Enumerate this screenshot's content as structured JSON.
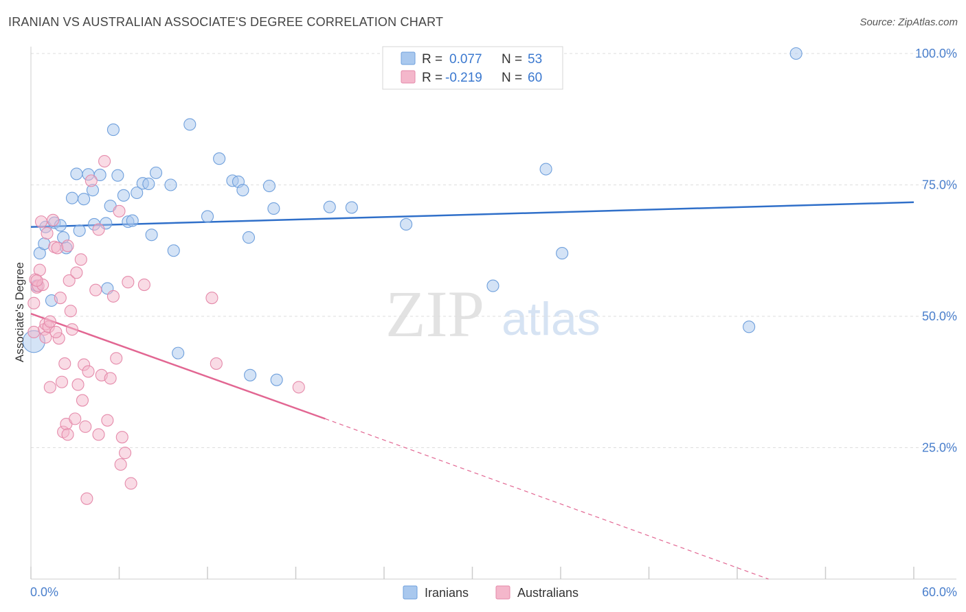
{
  "header": {
    "title": "IRANIAN VS AUSTRALIAN ASSOCIATE'S DEGREE CORRELATION CHART",
    "source": "Source: ZipAtlas.com"
  },
  "watermark": {
    "zip": "ZIP",
    "atlas": "atlas"
  },
  "colors": {
    "blue_fill": "#a9c8ee",
    "blue_stroke": "#6e9fdc",
    "blue_line": "#2f6fc9",
    "pink_fill": "#f4b7cb",
    "pink_stroke": "#e58aaa",
    "pink_line": "#e26692",
    "axis_text": "#4a7fcc",
    "grid": "#dddddd"
  },
  "legend": {
    "r_label": "R =",
    "n_label": "N =",
    "rows": [
      {
        "r": "0.077",
        "n": "53"
      },
      {
        "r": "-0.219",
        "n": "60"
      }
    ]
  },
  "chart_data": {
    "type": "scatter",
    "title": "IRANIAN VS AUSTRALIAN ASSOCIATE'S DEGREE CORRELATION CHART",
    "xlabel": "",
    "ylabel": "Associate's Degree",
    "xlim": [
      0,
      60
    ],
    "ylim": [
      0,
      104
    ],
    "x_tick_labels": [
      "0.0%",
      "60.0%"
    ],
    "y_ticks": [
      25,
      50,
      75,
      100
    ],
    "y_tick_labels": [
      "25.0%",
      "50.0%",
      "75.0%",
      "100.0%"
    ],
    "series": [
      {
        "name": "Iranians",
        "r": 0.077,
        "n": 53,
        "trend": {
          "x": [
            0,
            60
          ],
          "y": [
            67.0,
            71.7
          ],
          "dashed_after": null
        },
        "points": [
          [
            0.2,
            45.2
          ],
          [
            0.4,
            55.8
          ],
          [
            0.6,
            62.0
          ],
          [
            0.9,
            63.8
          ],
          [
            1.0,
            67.0
          ],
          [
            1.4,
            53.0
          ],
          [
            1.6,
            67.8
          ],
          [
            2.0,
            67.3
          ],
          [
            2.2,
            65.0
          ],
          [
            2.4,
            63.0
          ],
          [
            2.8,
            72.5
          ],
          [
            3.1,
            77.1
          ],
          [
            3.3,
            66.3
          ],
          [
            3.6,
            72.3
          ],
          [
            3.9,
            77.0
          ],
          [
            4.2,
            74.0
          ],
          [
            4.3,
            67.5
          ],
          [
            4.7,
            76.9
          ],
          [
            5.1,
            67.7
          ],
          [
            5.2,
            55.3
          ],
          [
            5.4,
            71.0
          ],
          [
            5.6,
            85.5
          ],
          [
            5.9,
            76.8
          ],
          [
            6.3,
            73.0
          ],
          [
            6.6,
            68.0
          ],
          [
            6.9,
            68.2
          ],
          [
            7.2,
            73.5
          ],
          [
            7.6,
            75.3
          ],
          [
            8.0,
            75.2
          ],
          [
            8.2,
            65.5
          ],
          [
            8.5,
            77.3
          ],
          [
            9.7,
            62.5
          ],
          [
            9.5,
            75.0
          ],
          [
            10.0,
            43.0
          ],
          [
            10.8,
            86.5
          ],
          [
            12.0,
            69.0
          ],
          [
            12.8,
            80.0
          ],
          [
            13.7,
            75.8
          ],
          [
            14.1,
            75.6
          ],
          [
            14.4,
            74.0
          ],
          [
            14.8,
            65.0
          ],
          [
            14.9,
            38.8
          ],
          [
            16.2,
            74.8
          ],
          [
            16.5,
            70.5
          ],
          [
            16.7,
            37.9
          ],
          [
            20.3,
            70.8
          ],
          [
            21.8,
            70.7
          ],
          [
            25.5,
            67.5
          ],
          [
            31.4,
            55.8
          ],
          [
            35.0,
            78.0
          ],
          [
            36.1,
            62.0
          ],
          [
            52.0,
            100.0
          ],
          [
            48.8,
            48.0
          ]
        ]
      },
      {
        "name": "Australians",
        "r": -0.219,
        "n": 60,
        "trend": {
          "x": [
            0,
            20,
            60
          ],
          "y": [
            50.5,
            30.5,
            -10.0
          ],
          "dashed_after": 20
        },
        "points": [
          [
            0.2,
            47.0
          ],
          [
            0.2,
            52.5
          ],
          [
            0.3,
            57.0
          ],
          [
            0.4,
            55.5
          ],
          [
            0.5,
            55.8
          ],
          [
            0.6,
            58.8
          ],
          [
            0.7,
            68.0
          ],
          [
            0.8,
            56.0
          ],
          [
            0.9,
            47.5
          ],
          [
            1.0,
            48.5
          ],
          [
            1.0,
            46.0
          ],
          [
            1.2,
            48.0
          ],
          [
            1.3,
            49.0
          ],
          [
            1.3,
            36.5
          ],
          [
            1.5,
            68.3
          ],
          [
            1.6,
            63.2
          ],
          [
            1.8,
            63.0
          ],
          [
            1.9,
            45.8
          ],
          [
            2.0,
            53.5
          ],
          [
            2.1,
            37.5
          ],
          [
            2.2,
            28.0
          ],
          [
            2.3,
            41.0
          ],
          [
            2.4,
            29.5
          ],
          [
            2.5,
            27.5
          ],
          [
            2.6,
            56.8
          ],
          [
            2.7,
            51.0
          ],
          [
            2.8,
            47.5
          ],
          [
            3.0,
            30.5
          ],
          [
            3.1,
            58.3
          ],
          [
            3.2,
            37.0
          ],
          [
            3.4,
            60.8
          ],
          [
            3.5,
            34.0
          ],
          [
            3.6,
            40.8
          ],
          [
            3.7,
            29.0
          ],
          [
            3.9,
            39.5
          ],
          [
            3.8,
            15.3
          ],
          [
            4.1,
            75.8
          ],
          [
            4.4,
            55.0
          ],
          [
            4.6,
            66.5
          ],
          [
            4.6,
            27.5
          ],
          [
            4.8,
            38.8
          ],
          [
            5.0,
            79.5
          ],
          [
            5.2,
            30.2
          ],
          [
            5.4,
            38.2
          ],
          [
            5.6,
            53.8
          ],
          [
            5.8,
            42.0
          ],
          [
            6.0,
            70.0
          ],
          [
            6.1,
            21.8
          ],
          [
            6.2,
            27.0
          ],
          [
            6.4,
            24.0
          ],
          [
            6.6,
            56.5
          ],
          [
            6.8,
            18.2
          ],
          [
            7.7,
            56.0
          ],
          [
            12.3,
            53.5
          ],
          [
            12.6,
            41.0
          ],
          [
            18.2,
            36.5
          ],
          [
            1.1,
            65.8
          ],
          [
            0.4,
            56.8
          ],
          [
            1.7,
            47.0
          ],
          [
            2.5,
            63.4
          ]
        ]
      }
    ],
    "legend_entries": [
      "Iranians",
      "Australians"
    ]
  }
}
